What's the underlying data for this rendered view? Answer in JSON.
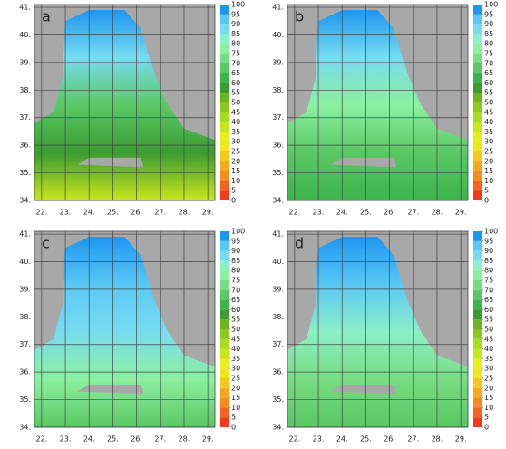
{
  "panels": [
    {
      "label": "a"
    },
    {
      "label": "b"
    },
    {
      "label": "c"
    },
    {
      "label": "d"
    }
  ],
  "map": {
    "xlim": [
      21.7,
      29.3
    ],
    "ylim": [
      34,
      41.1
    ],
    "xticks": [
      {
        "value": 22,
        "label": "22."
      },
      {
        "value": 23,
        "label": "23."
      },
      {
        "value": 24,
        "label": "24."
      },
      {
        "value": 25,
        "label": "25."
      },
      {
        "value": 26,
        "label": "26."
      },
      {
        "value": 27,
        "label": "27."
      },
      {
        "value": 28,
        "label": "28."
      },
      {
        "value": 29,
        "label": "29."
      }
    ],
    "yticks": [
      {
        "value": 34,
        "label": "34."
      },
      {
        "value": 35,
        "label": "35."
      },
      {
        "value": 36,
        "label": "36."
      },
      {
        "value": 37,
        "label": "37."
      },
      {
        "value": 38,
        "label": "38."
      },
      {
        "value": 39,
        "label": "39."
      },
      {
        "value": 40,
        "label": "40."
      },
      {
        "value": 41,
        "label": "41."
      }
    ],
    "grid": true
  },
  "colorbar": {
    "clim": [
      0,
      100
    ],
    "ticks": [
      0,
      5,
      10,
      15,
      20,
      25,
      30,
      35,
      40,
      45,
      50,
      55,
      60,
      65,
      70,
      75,
      80,
      85,
      90,
      95,
      100
    ],
    "colors": [
      "#f03c1e",
      "#f5641e",
      "#f58c1e",
      "#f5aa1e",
      "#f5c81e",
      "#f0e61e",
      "#e6f01e",
      "#c8e61e",
      "#aadc1e",
      "#8cc81e",
      "#6eb41e",
      "#3c9b32",
      "#3cb44b",
      "#5ac864",
      "#78dc82",
      "#8cf0a0",
      "#8cf0c8",
      "#78dcf0",
      "#5ac8f5",
      "#1e96f0"
    ]
  }
}
